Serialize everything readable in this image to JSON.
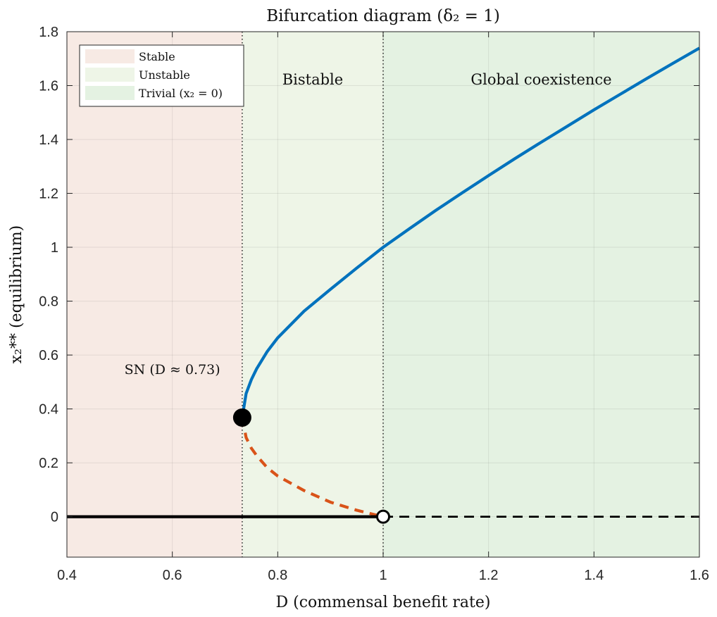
{
  "chart_data": {
    "type": "line",
    "title": "Bifurcation diagram (δ₂ = 1)",
    "xlabel": "D (commensal benefit rate)",
    "ylabel": "x₂** (equilibrium)",
    "xlim": [
      0.4,
      1.6
    ],
    "ylim": [
      -0.15,
      1.8
    ],
    "xticks": [
      0.4,
      0.6,
      0.8,
      1,
      1.2,
      1.4,
      1.6
    ],
    "yticks": [
      0,
      0.2,
      0.4,
      0.6,
      0.8,
      1,
      1.2,
      1.4,
      1.6,
      1.8
    ],
    "grid": true,
    "legend_position": "top-left",
    "legend": [
      {
        "label": "Stable",
        "color": "#f7eae4"
      },
      {
        "label": "Unstable",
        "color": "#eef5e7"
      },
      {
        "label": "Trivial (x₂ = 0)",
        "color": "#e4f2e2"
      }
    ],
    "regions": [
      {
        "x0": 0.4,
        "x1": 0.7326,
        "color": "#f7eae4",
        "label": ""
      },
      {
        "x0": 0.7326,
        "x1": 1.0,
        "color": "#eef5e7",
        "label": "Bistable"
      },
      {
        "x0": 1.0,
        "x1": 1.6,
        "color": "#e4f2e2",
        "label": "Global coexistence"
      }
    ],
    "vlines": [
      0.7326,
      1.0
    ],
    "series": [
      {
        "style": "solid",
        "color": "#0072bd",
        "x": [
          0.7326,
          0.74,
          0.75,
          0.76,
          0.78,
          0.8,
          0.85,
          0.9,
          0.95,
          1.0,
          1.05,
          1.1,
          1.15,
          1.2,
          1.25,
          1.3,
          1.35,
          1.4,
          1.45,
          1.5,
          1.55,
          1.6
        ],
        "y": [
          0.368,
          0.457,
          0.509,
          0.549,
          0.613,
          0.664,
          0.763,
          0.844,
          0.923,
          1.0,
          1.069,
          1.137,
          1.202,
          1.266,
          1.329,
          1.39,
          1.45,
          1.51,
          1.568,
          1.626,
          1.683,
          1.739
        ]
      },
      {
        "style": "dashed",
        "color": "#d95319",
        "x": [
          0.7326,
          0.74,
          0.75,
          0.76,
          0.78,
          0.8,
          0.85,
          0.9,
          0.95,
          1.0
        ],
        "y": [
          0.368,
          0.294,
          0.254,
          0.227,
          0.182,
          0.151,
          0.097,
          0.054,
          0.024,
          0.0
        ]
      },
      {
        "style": "solid",
        "color": "#000000",
        "x": [
          0.4,
          1.0
        ],
        "y": [
          0,
          0
        ]
      },
      {
        "style": "dashed",
        "color": "#000000",
        "x": [
          1.0,
          1.6
        ],
        "y": [
          0,
          0
        ]
      }
    ],
    "points": [
      {
        "x": 0.7326,
        "y": 0.368,
        "marker": "filled"
      },
      {
        "x": 1.0,
        "y": 0.0,
        "marker": "open"
      }
    ],
    "annotations": [
      {
        "text": "SN (D ≈ 0.73)",
        "x": 0.6,
        "y": 0.53
      }
    ]
  }
}
